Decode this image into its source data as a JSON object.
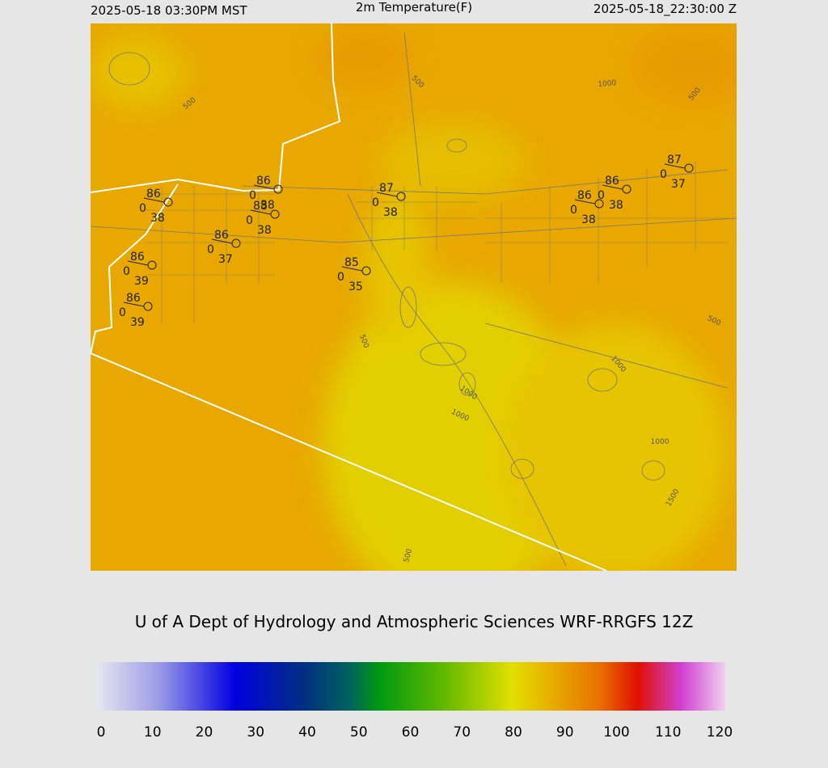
{
  "header": {
    "local_time": "2025-05-18 03:30PM MST",
    "title": "2m Temperature(F)",
    "utc_time": "2025-05-18_22:30:00 Z"
  },
  "stations": [
    {
      "temperature": 86,
      "wind": 0,
      "dewpoint": 38
    },
    {
      "temperature": 86,
      "wind": 0,
      "dewpoint": 38
    },
    {
      "temperature": 88,
      "wind": 0,
      "dewpoint": 38
    },
    {
      "temperature": 86,
      "wind": 0,
      "dewpoint": 37
    },
    {
      "temperature": 86,
      "wind": 0,
      "dewpoint": 39
    },
    {
      "temperature": 86,
      "wind": 0,
      "dewpoint": 39
    },
    {
      "temperature": 85,
      "wind": 0,
      "dewpoint": 35
    },
    {
      "temperature": 87,
      "wind": 0,
      "dewpoint": 38
    },
    {
      "temperature": 86,
      "wind": 0,
      "dewpoint": 38
    },
    {
      "temperature": 86,
      "wind": 0,
      "dewpoint": 38
    },
    {
      "temperature": 87,
      "wind": 0,
      "dewpoint": 37
    }
  ],
  "contour_labels": [
    500,
    500,
    1000,
    500,
    500,
    500,
    1000,
    1000,
    1000,
    1000,
    1500,
    500
  ],
  "footer": "U of A Dept of Hydrology and Atmospheric Sciences WRF-RRGFS 12Z",
  "colorbar": {
    "ticks": [
      0,
      10,
      20,
      30,
      40,
      50,
      60,
      70,
      80,
      90,
      100,
      110,
      120
    ]
  }
}
